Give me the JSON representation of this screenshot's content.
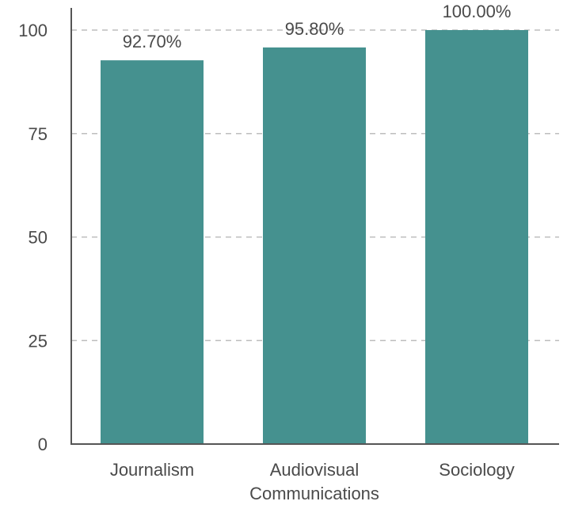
{
  "chart_data": {
    "type": "bar",
    "categories": [
      "Journalism",
      "Audiovisual Communications",
      "Sociology"
    ],
    "category_lines": [
      [
        "Journalism"
      ],
      [
        "Audiovisual",
        "Communications"
      ],
      [
        "Sociology"
      ]
    ],
    "values": [
      92.7,
      95.8,
      100.0
    ],
    "data_labels": [
      "92.70%",
      "95.80%",
      "100.00%"
    ],
    "yticks": [
      0,
      25,
      50,
      75,
      100
    ],
    "ylim": [
      0,
      100
    ],
    "grid": true,
    "legend": "none",
    "bar_color": "#45918f"
  }
}
